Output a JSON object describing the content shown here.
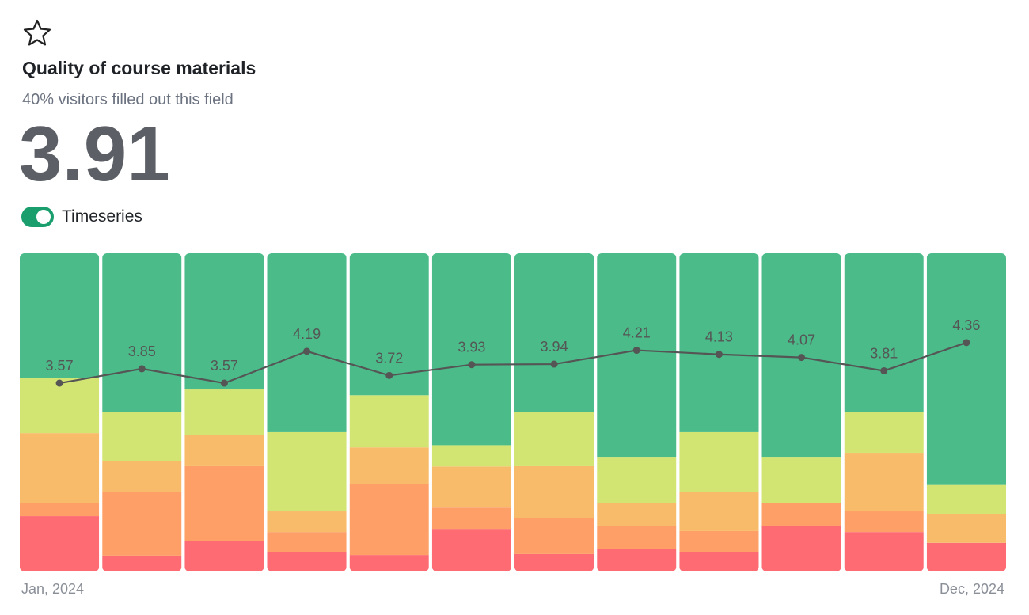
{
  "header": {
    "title": "Quality of course materials",
    "subtitle": "40% visitors filled out this field",
    "value": "3.91"
  },
  "toggle": {
    "label": "Timeseries",
    "on": true,
    "color": "#1a9e6e"
  },
  "chart_data": {
    "type": "bar",
    "stacked": true,
    "categories": [
      "Jan, 2024",
      null,
      null,
      null,
      null,
      null,
      null,
      null,
      null,
      null,
      null,
      "Dec, 2024"
    ],
    "ylim": [
      0,
      100
    ],
    "series": [
      {
        "color": "#fe6b73",
        "values": [
          17.4,
          5.0,
          9.5,
          6.2,
          5.2,
          13.4,
          5.5,
          7.2,
          6.2,
          14.2,
          12.4,
          9.0
        ]
      },
      {
        "color": "#fd9f67",
        "values": [
          4.2,
          20.1,
          23.6,
          6.2,
          22.4,
          6.7,
          11.2,
          7.0,
          6.5,
          7.2,
          6.5,
          0
        ]
      },
      {
        "color": "#f8bb6a",
        "values": [
          21.9,
          9.7,
          9.7,
          6.5,
          11.4,
          12.9,
          16.4,
          7.2,
          12.4,
          0,
          18.4,
          9.0
        ]
      },
      {
        "color": "#d2e573",
        "values": [
          17.2,
          15.2,
          14.4,
          24.9,
          16.4,
          6.7,
          16.9,
          14.4,
          18.7,
          14.4,
          12.7,
          9.2
        ]
      },
      {
        "color": "#4bbb8a",
        "values": [
          39.3,
          50.0,
          42.8,
          56.2,
          44.6,
          60.3,
          50.0,
          64.2,
          56.2,
          64.2,
          50.0,
          72.8
        ]
      },
      {
        "type": "line",
        "axis": "y2",
        "color": "#555555",
        "values": [
          3.57,
          3.85,
          3.57,
          4.19,
          3.72,
          3.93,
          3.94,
          4.21,
          4.13,
          4.07,
          3.81,
          4.36
        ]
      }
    ],
    "y2lim": [
      -0.1,
      6.1
    ]
  }
}
